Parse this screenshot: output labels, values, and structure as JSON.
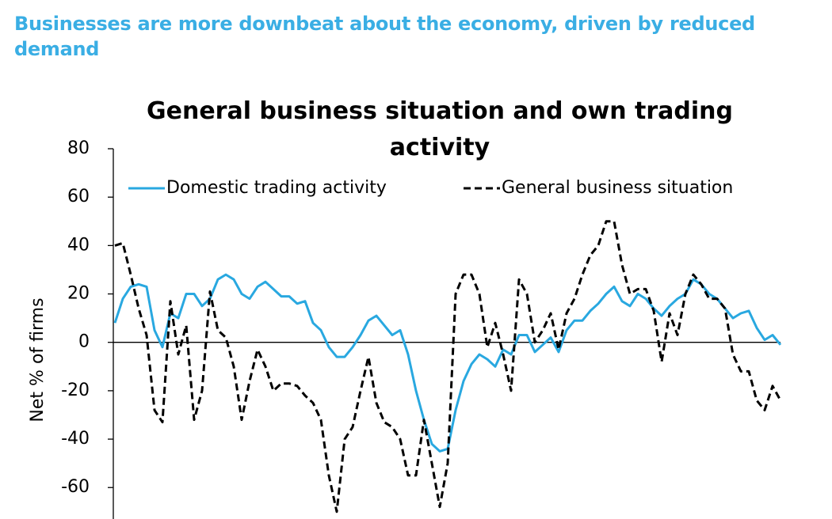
{
  "header": {
    "title": "Businesses are more downbeat about the economy, driven by reduced demand"
  },
  "chart_data": {
    "type": "line",
    "title": "General business situation and own trading activity",
    "ylabel": "Net % of firms",
    "ylim": [
      -73,
      80
    ],
    "yticks": [
      -60,
      -40,
      -20,
      0,
      20,
      40,
      60,
      80
    ],
    "legend": "top",
    "series": [
      {
        "name": "Domestic trading activity",
        "color": "#29a8e0",
        "dash": "solid",
        "values": [
          8,
          18,
          23,
          24,
          23,
          5,
          -2,
          12,
          10,
          20,
          20,
          15,
          18,
          26,
          28,
          26,
          20,
          18,
          23,
          25,
          22,
          19,
          19,
          16,
          17,
          8,
          5,
          -2,
          -6,
          -6,
          -2,
          3,
          9,
          11,
          7,
          3,
          5,
          -5,
          -20,
          -32,
          -42,
          -45,
          -44,
          -28,
          -16,
          -9,
          -5,
          -7,
          -10,
          -3,
          -5,
          3,
          3,
          -4,
          -1,
          2,
          -4,
          5,
          9,
          9,
          13,
          16,
          20,
          23,
          17,
          15,
          20,
          18,
          14,
          11,
          15,
          18,
          20,
          26,
          24,
          20,
          18,
          14,
          10,
          12,
          13,
          6,
          1,
          3,
          -1
        ]
      },
      {
        "name": "General business situation",
        "color": "#000000",
        "dash": "dashed",
        "values": [
          40,
          41,
          28,
          14,
          3,
          -28,
          -33,
          17,
          -5,
          7,
          -32,
          -20,
          21,
          5,
          2,
          -10,
          -32,
          -16,
          -3,
          -10,
          -20,
          -17,
          -17,
          -18,
          -22,
          -25,
          -32,
          -55,
          -70,
          -40,
          -35,
          -20,
          -6,
          -25,
          -33,
          -35,
          -40,
          -55,
          -55,
          -32,
          -50,
          -68,
          -50,
          20,
          28,
          28,
          20,
          -2,
          8,
          -5,
          -20,
          26,
          20,
          0,
          5,
          12,
          -3,
          12,
          18,
          28,
          36,
          40,
          50,
          50,
          32,
          20,
          22,
          22,
          13,
          -8,
          12,
          3,
          20,
          28,
          24,
          18,
          18,
          14,
          -5,
          -12,
          -12,
          -24,
          -28,
          -18,
          -24
        ]
      }
    ]
  }
}
